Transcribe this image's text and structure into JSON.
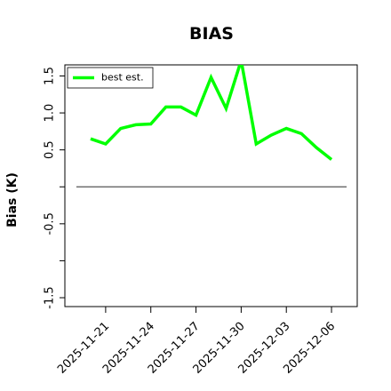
{
  "chart_data": {
    "type": "line",
    "title": "BIAS",
    "y_label": "Bias (K)",
    "x": [
      "2025-11-20",
      "2025-11-21",
      "2025-11-22",
      "2025-11-23",
      "2025-11-24",
      "2025-11-25",
      "2025-11-26",
      "2025-11-27",
      "2025-11-28",
      "2025-11-29",
      "2025-11-30",
      "2025-12-01",
      "2025-12-02",
      "2025-12-03",
      "2025-12-04",
      "2025-12-05",
      "2025-12-06"
    ],
    "series": [
      {
        "name": "best est.",
        "color": "#00ff00",
        "values": [
          0.65,
          0.58,
          0.79,
          0.84,
          0.85,
          1.08,
          1.08,
          0.97,
          1.48,
          1.06,
          1.71,
          0.58,
          0.7,
          0.79,
          0.72,
          0.53,
          0.37
        ]
      }
    ],
    "xlim": [
      "2025-11-18T07:00",
      "2025-12-07T17:00"
    ],
    "xticks": [
      "2025-11-21",
      "2025-11-24",
      "2025-11-27",
      "2025-11-30",
      "2025-12-03",
      "2025-12-06"
    ],
    "ylim": [
      -1.62,
      1.65
    ],
    "yticks": [
      -1.5,
      {
        "value": -1,
        "label": null
      },
      -0.5,
      {
        "value": 0,
        "label": null
      },
      0.5,
      {
        "value": 1,
        "label": "1.0"
      },
      1.5
    ],
    "reference_line": 0,
    "legend": "upper left"
  }
}
